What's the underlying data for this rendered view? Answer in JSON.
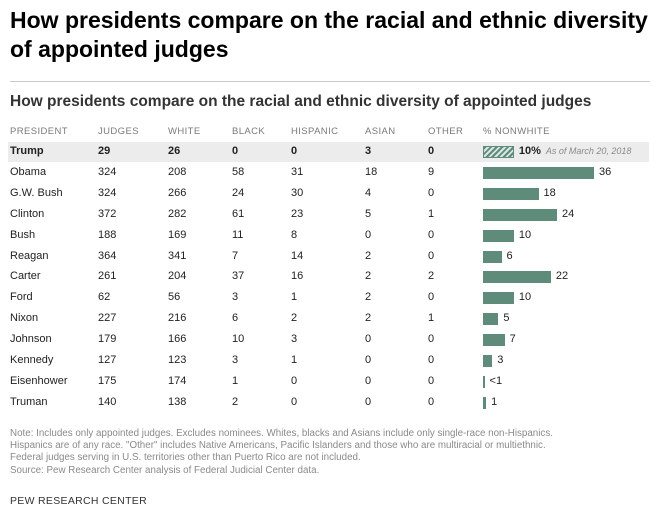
{
  "title": "How presidents compare on the racial and ethnic diversity of appointed judges",
  "chart_data": {
    "type": "table",
    "title": "How presidents compare on the racial and ethnic diversity of appointed judges",
    "columns": [
      "PRESIDENT",
      "JUDGES",
      "WHITE",
      "BLACK",
      "HISPANIC",
      "ASIAN",
      "OTHER",
      "% NONWHITE"
    ],
    "rows": [
      {
        "president": "Trump",
        "judges": "29",
        "white": "26",
        "black": "0",
        "hispanic": "0",
        "asian": "3",
        "other": "0",
        "nonwhite": 10,
        "label": "10%",
        "note": "As of March 20, 2018",
        "highlight": true
      },
      {
        "president": "Obama",
        "judges": "324",
        "white": "208",
        "black": "58",
        "hispanic": "31",
        "asian": "18",
        "other": "9",
        "nonwhite": 36,
        "label": "36"
      },
      {
        "president": "G.W. Bush",
        "judges": "324",
        "white": "266",
        "black": "24",
        "hispanic": "30",
        "asian": "4",
        "other": "0",
        "nonwhite": 18,
        "label": "18"
      },
      {
        "president": "Clinton",
        "judges": "372",
        "white": "282",
        "black": "61",
        "hispanic": "23",
        "asian": "5",
        "other": "1",
        "nonwhite": 24,
        "label": "24"
      },
      {
        "president": "Bush",
        "judges": "188",
        "white": "169",
        "black": "11",
        "hispanic": "8",
        "asian": "0",
        "other": "0",
        "nonwhite": 10,
        "label": "10"
      },
      {
        "president": "Reagan",
        "judges": "364",
        "white": "341",
        "black": "7",
        "hispanic": "14",
        "asian": "2",
        "other": "0",
        "nonwhite": 6,
        "label": "6"
      },
      {
        "president": "Carter",
        "judges": "261",
        "white": "204",
        "black": "37",
        "hispanic": "16",
        "asian": "2",
        "other": "2",
        "nonwhite": 22,
        "label": "22"
      },
      {
        "president": "Ford",
        "judges": "62",
        "white": "56",
        "black": "3",
        "hispanic": "1",
        "asian": "2",
        "other": "0",
        "nonwhite": 10,
        "label": "10"
      },
      {
        "president": "Nixon",
        "judges": "227",
        "white": "216",
        "black": "6",
        "hispanic": "2",
        "asian": "2",
        "other": "1",
        "nonwhite": 5,
        "label": "5"
      },
      {
        "president": "Johnson",
        "judges": "179",
        "white": "166",
        "black": "10",
        "hispanic": "3",
        "asian": "0",
        "other": "0",
        "nonwhite": 7,
        "label": "7"
      },
      {
        "president": "Kennedy",
        "judges": "127",
        "white": "123",
        "black": "3",
        "hispanic": "1",
        "asian": "0",
        "other": "0",
        "nonwhite": 3,
        "label": "3"
      },
      {
        "president": "Eisenhower",
        "judges": "175",
        "white": "174",
        "black": "1",
        "hispanic": "0",
        "asian": "0",
        "other": "0",
        "nonwhite": 0.5,
        "label": "<1"
      },
      {
        "president": "Truman",
        "judges": "140",
        "white": "138",
        "black": "2",
        "hispanic": "0",
        "asian": "0",
        "other": "0",
        "nonwhite": 1,
        "label": "1"
      }
    ],
    "bar_max": 36,
    "bar_color": "#5e8b7a"
  },
  "notes": [
    "Note: Includes only appointed judges. Excludes nominees. Whites, blacks and Asians include only single-race non-Hispanics.",
    "Hispanics are of any race. \"Other\" includes Native Americans, Pacific Islanders and those who are multiracial or multiethnic.",
    "Federal judges serving in U.S. territories other than Puerto Rico are not included.",
    "Source: Pew Research Center analysis of Federal Judicial Center data."
  ],
  "source_org": "PEW RESEARCH CENTER"
}
